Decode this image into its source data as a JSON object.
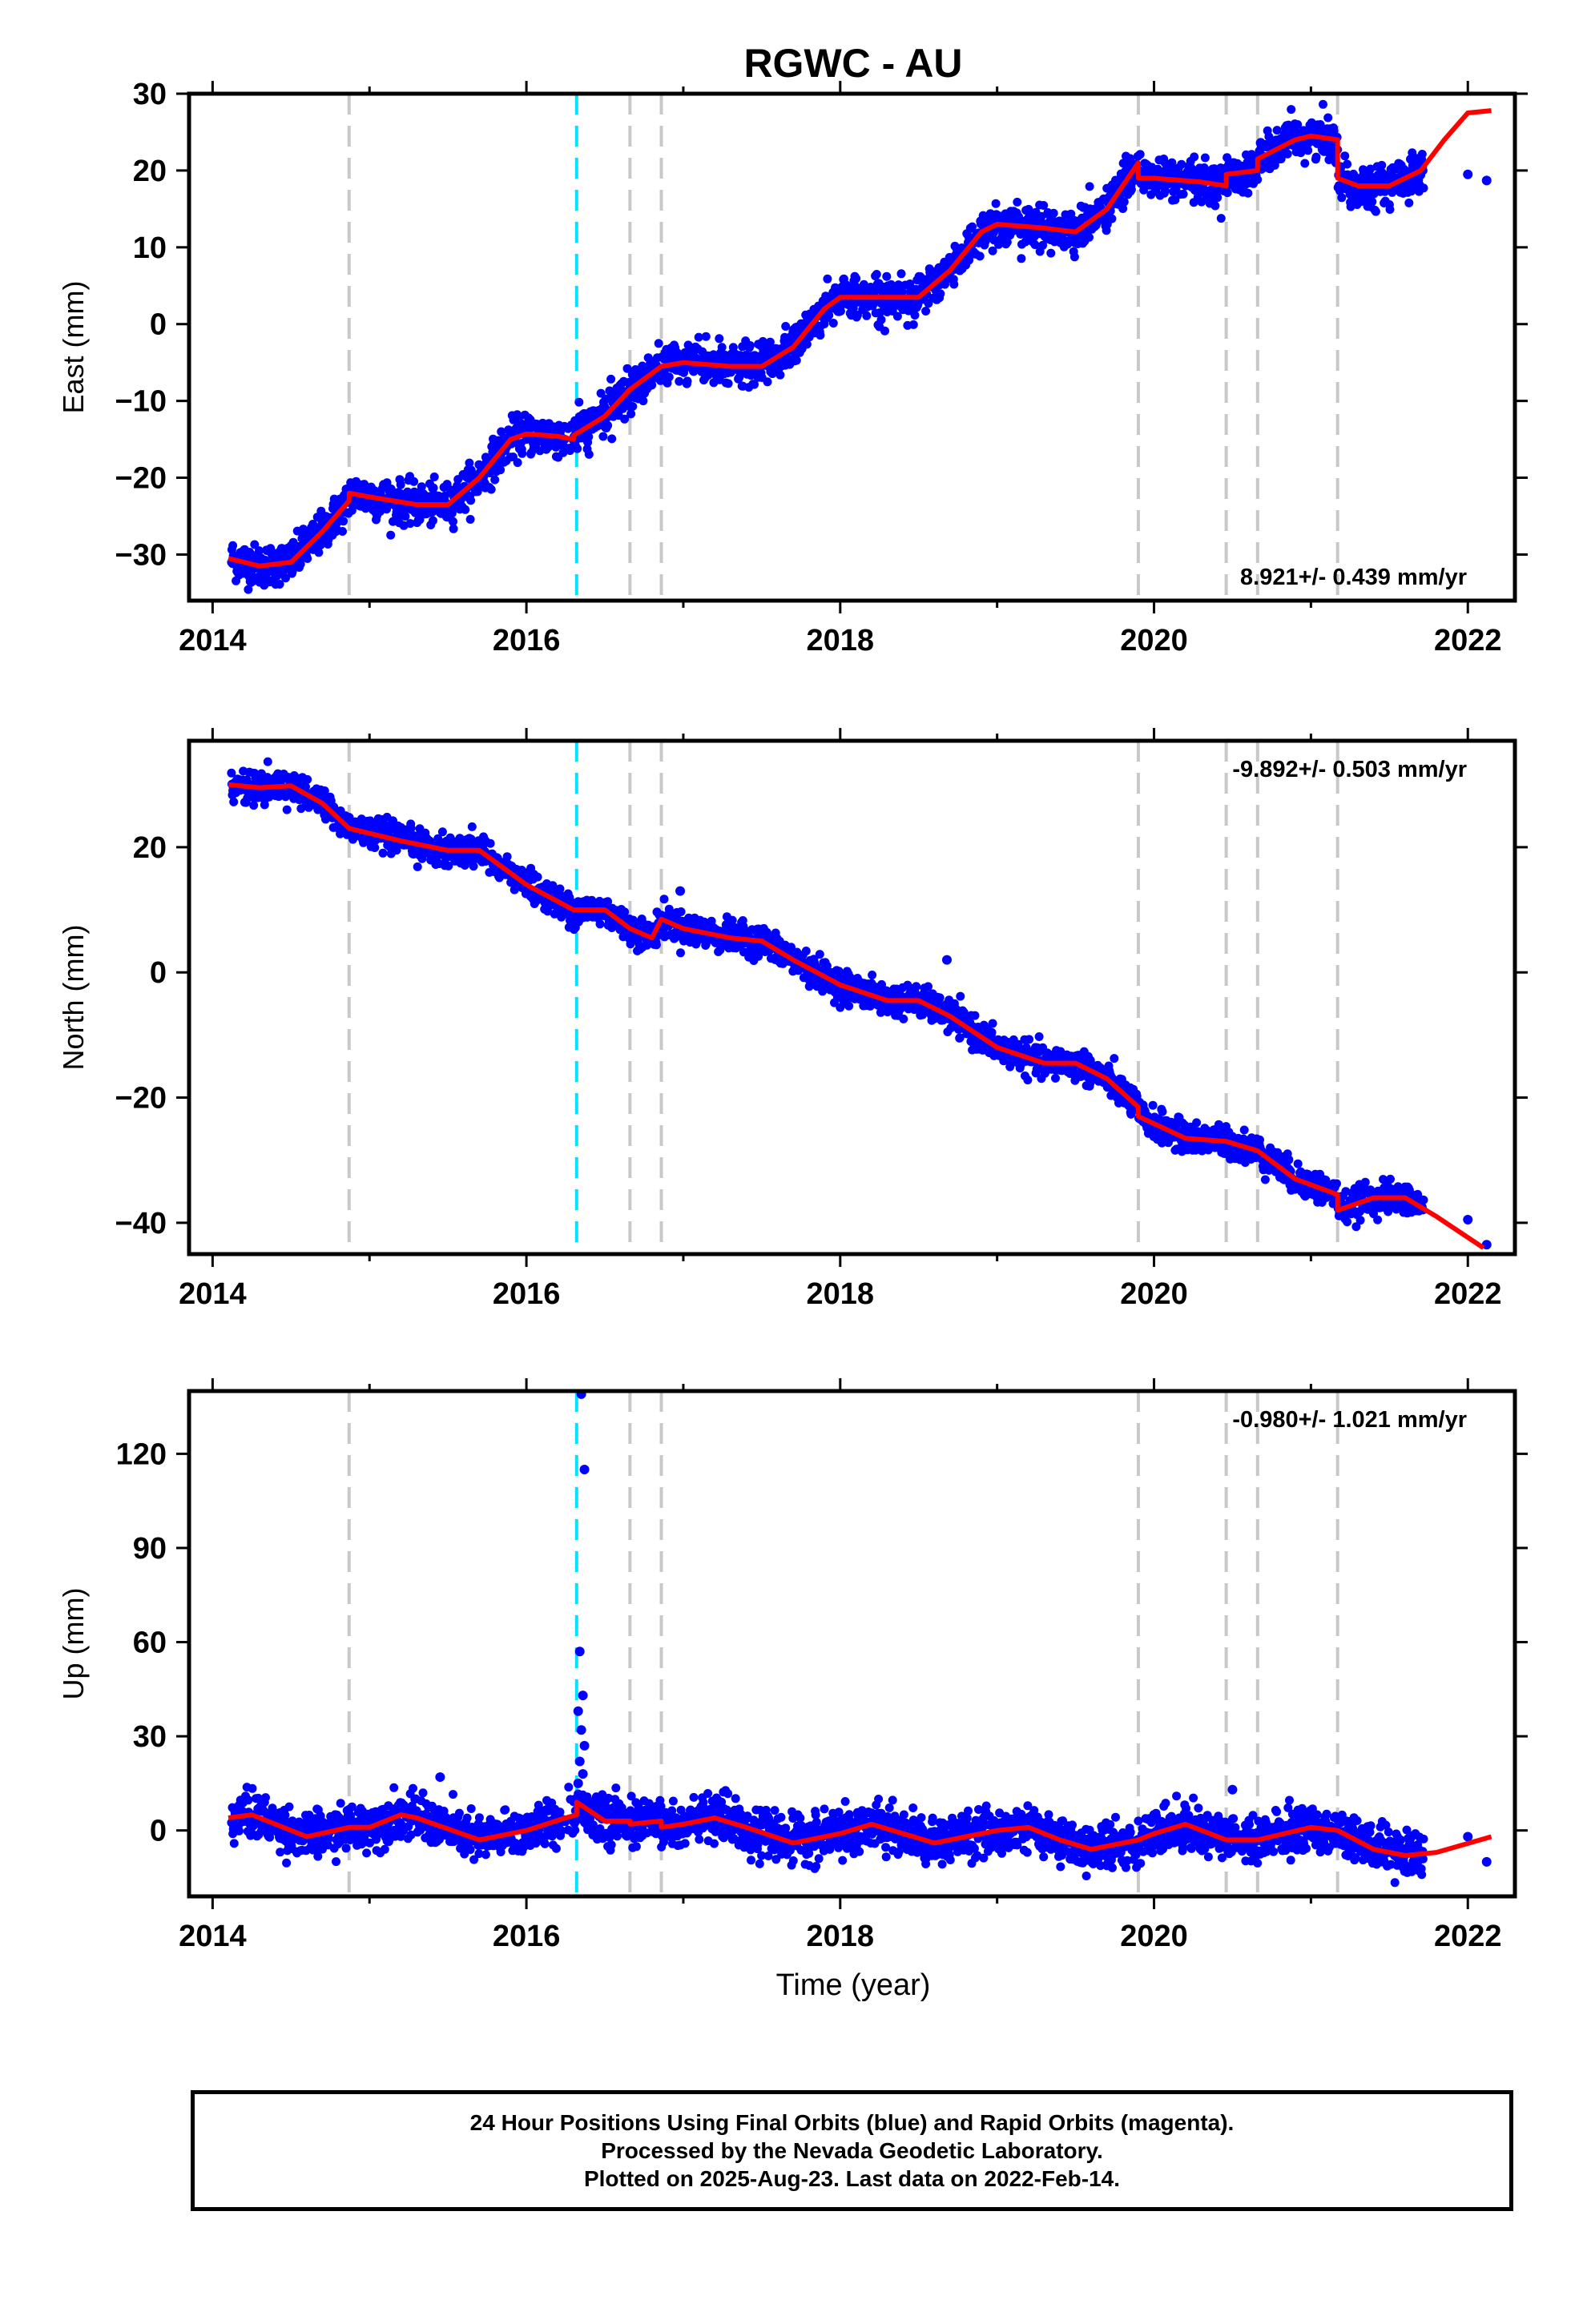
{
  "title": "RGWC - AU",
  "xlabel": "Time (year)",
  "footer": {
    "lines": [
      "24 Hour Positions Using Final Orbits (blue) and Rapid Orbits (magenta).",
      "Processed by the Nevada Geodetic Laboratory.",
      "Plotted on 2025-Aug-23. Last data on 2022-Feb-14."
    ]
  },
  "colors": {
    "final_orbits": "#0000ff",
    "model": "#ff0000",
    "antenna_change": "#00e5ff",
    "event": "#c8c8c8"
  },
  "chart_data": [
    {
      "type": "scatter",
      "ylabel": "East (mm)",
      "rate_text": "8.921+/- 0.439 mm/yr",
      "rate_position": "bottom-right",
      "xlim": [
        2013.85,
        2022.3
      ],
      "ylim": [
        -36,
        30
      ],
      "xticks": [
        2014,
        2016,
        2018,
        2020,
        2022
      ],
      "yticks": [
        -30,
        -20,
        -10,
        0,
        10,
        20,
        30
      ],
      "grid": false,
      "model": {
        "x": [
          2014.1,
          2014.3,
          2014.5,
          2014.7,
          2014.87,
          2014.87,
          2015.0,
          2015.3,
          2015.5,
          2015.7,
          2015.9,
          2016.0,
          2016.2,
          2016.3,
          2016.3,
          2016.5,
          2016.66,
          2016.66,
          2016.86,
          2016.86,
          2017.0,
          2017.3,
          2017.5,
          2017.7,
          2017.9,
          2018.0,
          2018.3,
          2018.5,
          2018.7,
          2018.9,
          2019.0,
          2019.3,
          2019.5,
          2019.7,
          2019.9,
          2019.9,
          2020.0,
          2020.3,
          2020.46,
          2020.46,
          2020.66,
          2020.66,
          2020.9,
          2021.0,
          2021.17,
          2021.17,
          2021.3,
          2021.5,
          2021.7,
          2021.85,
          2022.0,
          2022.15
        ],
        "y": [
          -30.5,
          -31.5,
          -31,
          -27,
          -23,
          -22,
          -22.5,
          -23.5,
          -23.5,
          -20,
          -15,
          -14.3,
          -14.6,
          -15,
          -14.5,
          -12,
          -8.5,
          -8.5,
          -5.5,
          -5.5,
          -5,
          -5.5,
          -5.5,
          -3,
          2,
          3.5,
          3.5,
          3.5,
          7,
          12,
          13,
          12.5,
          12,
          15,
          21,
          19,
          19,
          18.5,
          18,
          19.5,
          20,
          21.5,
          24,
          24.5,
          24,
          19,
          18,
          18,
          20,
          24,
          27.5,
          27.8
        ]
      },
      "scatter": {
        "noise_mm": 1.3,
        "outliers": [
          {
            "x": 2022.0,
            "y": 19.5
          },
          {
            "x": 2022.12,
            "y": 18.7
          }
        ]
      },
      "antenna_change": [
        2016.32
      ],
      "events": [
        2014.87,
        2016.66,
        2016.86,
        2019.9,
        2020.46,
        2020.66,
        2021.17
      ]
    },
    {
      "type": "scatter",
      "ylabel": "North (mm)",
      "rate_text": "-9.892+/- 0.503 mm/yr",
      "rate_position": "top-right",
      "xlim": [
        2013.85,
        2022.3
      ],
      "ylim": [
        -45,
        37
      ],
      "xticks": [
        2014,
        2016,
        2018,
        2020,
        2022
      ],
      "yticks": [
        -40,
        -20,
        0,
        20
      ],
      "grid": false,
      "model": {
        "x": [
          2014.1,
          2014.3,
          2014.5,
          2014.7,
          2014.87,
          2014.87,
          2015.2,
          2015.5,
          2015.7,
          2016.0,
          2016.3,
          2016.5,
          2016.66,
          2016.66,
          2016.8,
          2016.86,
          2016.86,
          2017.0,
          2017.3,
          2017.5,
          2017.7,
          2018.0,
          2018.3,
          2018.5,
          2018.7,
          2019.0,
          2019.3,
          2019.5,
          2019.7,
          2019.9,
          2019.9,
          2020.2,
          2020.46,
          2020.46,
          2020.66,
          2020.66,
          2020.9,
          2021.17,
          2021.17,
          2021.4,
          2021.6,
          2021.8,
          2022.1
        ],
        "y": [
          30,
          29.5,
          29.8,
          27,
          23,
          23,
          21,
          19.5,
          19.5,
          14,
          10,
          10,
          7,
          7,
          5.5,
          8.5,
          8.5,
          7,
          5.5,
          5,
          2,
          -2,
          -4.5,
          -4.5,
          -7,
          -12,
          -14.5,
          -14.5,
          -17,
          -21.5,
          -23,
          -26.5,
          -27,
          -27,
          -28.5,
          -28.5,
          -33,
          -35.5,
          -38,
          -36,
          -36,
          -39,
          -44
        ]
      },
      "scatter": {
        "noise_mm": 1.2,
        "outliers": [
          {
            "x": 2016.98,
            "y": 13
          },
          {
            "x": 2018.68,
            "y": 2
          },
          {
            "x": 2022.0,
            "y": -39.5
          },
          {
            "x": 2022.12,
            "y": -43.5
          }
        ]
      },
      "antenna_change": [
        2016.32
      ],
      "events": [
        2014.87,
        2016.66,
        2016.86,
        2019.9,
        2020.46,
        2020.66,
        2021.17
      ]
    },
    {
      "type": "scatter",
      "ylabel": "Up (mm)",
      "rate_text": "-0.980+/- 1.021 mm/yr",
      "rate_position": "top-right",
      "xlim": [
        2013.85,
        2022.3
      ],
      "ylim": [
        -21,
        140
      ],
      "xticks": [
        2014,
        2016,
        2018,
        2020,
        2022
      ],
      "yticks": [
        0,
        30,
        60,
        90,
        120
      ],
      "grid": false,
      "model": {
        "x": [
          2014.1,
          2014.25,
          2014.6,
          2014.87,
          2015.0,
          2015.2,
          2015.3,
          2015.7,
          2016.0,
          2016.25,
          2016.32,
          2016.32,
          2016.5,
          2016.66,
          2016.66,
          2016.86,
          2016.86,
          2017.0,
          2017.2,
          2017.4,
          2017.7,
          2018.0,
          2018.2,
          2018.4,
          2018.6,
          2018.8,
          2019.0,
          2019.2,
          2019.4,
          2019.6,
          2019.9,
          2020.0,
          2020.2,
          2020.46,
          2020.46,
          2020.66,
          2020.66,
          2021.0,
          2021.17,
          2021.17,
          2021.4,
          2021.6,
          2021.8,
          2022.15
        ],
        "y": [
          4,
          5,
          -2,
          1,
          1,
          5,
          4,
          -3,
          0,
          4,
          5,
          9,
          3,
          3,
          2,
          3,
          1,
          2,
          4,
          1,
          -4,
          -1,
          2,
          -1,
          -4,
          -2,
          0,
          1,
          -3,
          -6,
          -3,
          -1,
          2,
          -3,
          -3,
          -3,
          -3,
          1,
          0,
          0,
          -6,
          -8,
          -7,
          -2
        ]
      },
      "scatter": {
        "noise_mm": 3.5,
        "outliers": [
          {
            "x": 2016.35,
            "y": 139
          },
          {
            "x": 2016.37,
            "y": 115
          },
          {
            "x": 2016.34,
            "y": 57
          },
          {
            "x": 2016.36,
            "y": 43
          },
          {
            "x": 2016.33,
            "y": 38
          },
          {
            "x": 2016.35,
            "y": 32
          },
          {
            "x": 2016.37,
            "y": 27
          },
          {
            "x": 2016.34,
            "y": 22
          },
          {
            "x": 2016.36,
            "y": 18
          },
          {
            "x": 2016.33,
            "y": 15
          },
          {
            "x": 2015.45,
            "y": 17
          },
          {
            "x": 2020.5,
            "y": 13
          },
          {
            "x": 2022.0,
            "y": -2
          },
          {
            "x": 2022.12,
            "y": -10
          }
        ]
      },
      "antenna_change": [
        2016.32
      ],
      "events": [
        2014.87,
        2016.66,
        2016.86,
        2019.9,
        2020.46,
        2020.66,
        2021.17
      ]
    }
  ]
}
